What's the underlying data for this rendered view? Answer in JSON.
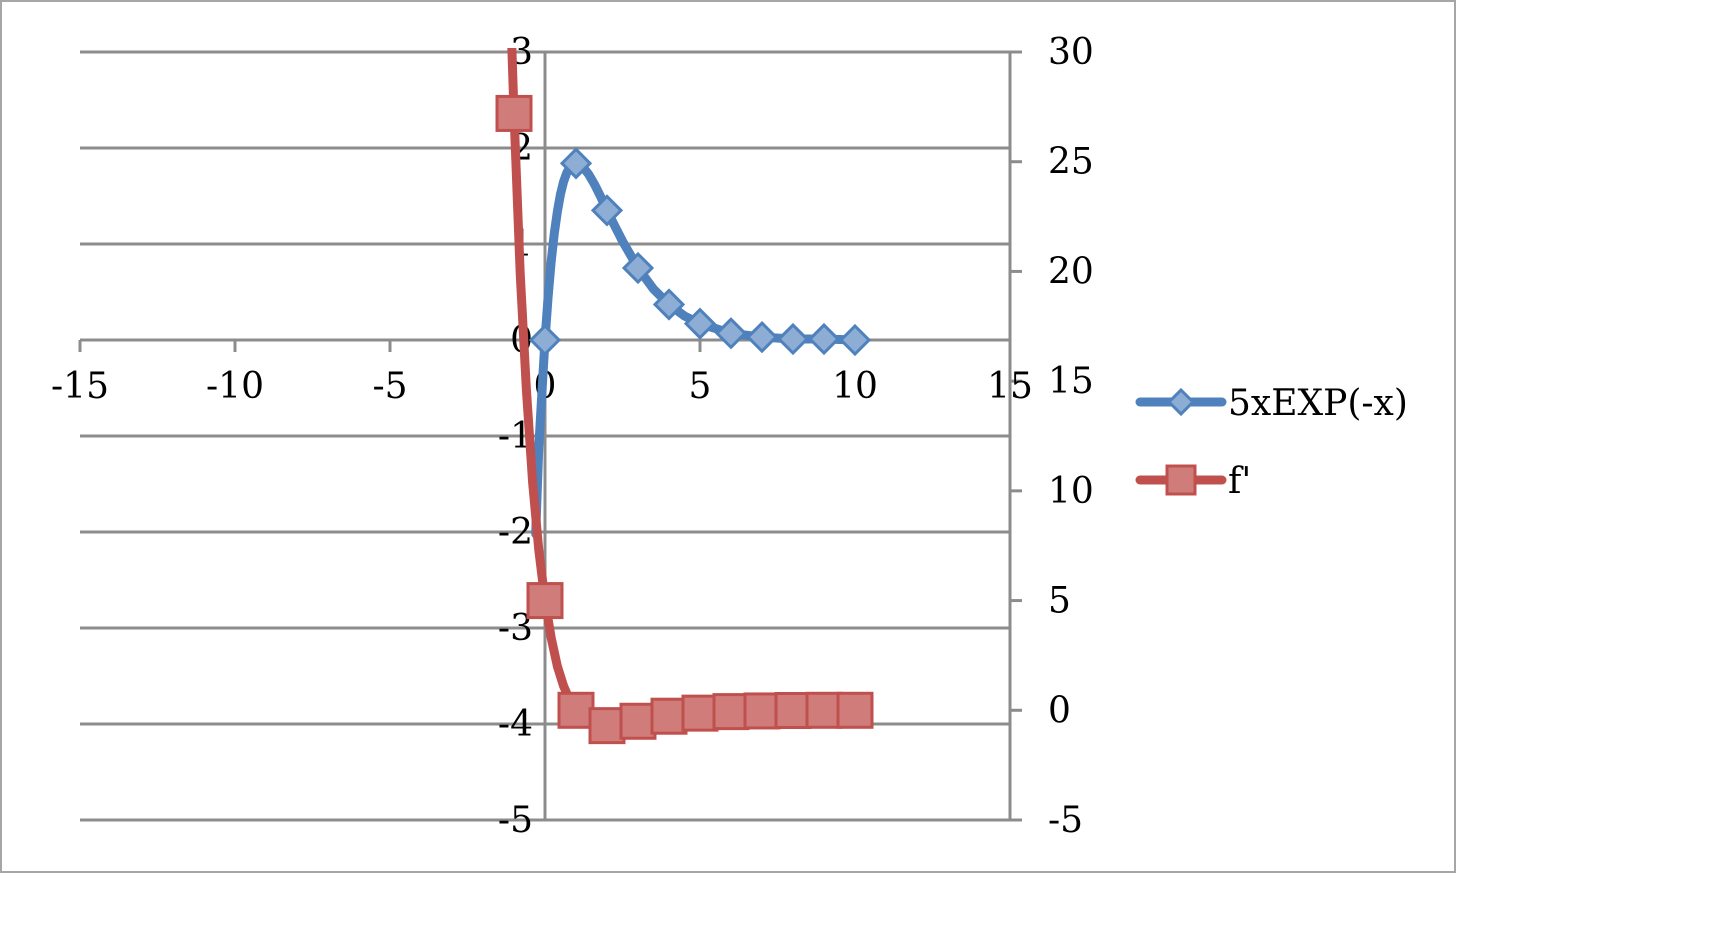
{
  "chart_data": {
    "type": "scatter",
    "title": "",
    "xlabel": "",
    "ylabel": "",
    "grid": true,
    "legend_position": "right",
    "x_axis": {
      "min": -15,
      "max": 15,
      "ticks": [
        -15,
        -10,
        -5,
        0,
        5,
        10,
        15
      ]
    },
    "y_axis_left": {
      "min": -5,
      "max": 3,
      "ticks": [
        3,
        2,
        1,
        0,
        -1,
        -2,
        -3,
        -4,
        -5
      ]
    },
    "y_axis_right": {
      "min": -5,
      "max": 30,
      "ticks": [
        30,
        25,
        20,
        15,
        10,
        5,
        0,
        -5
      ]
    },
    "series": [
      {
        "name": "5xEXP(-x)",
        "color": "#4f81bd",
        "marker": "diamond",
        "axis": "left",
        "x": [
          0,
          1,
          2,
          3,
          4,
          5,
          6,
          7,
          8,
          9,
          10
        ],
        "y": [
          0,
          1.84,
          1.35,
          0.75,
          0.37,
          0.17,
          0.07,
          0.03,
          0.01,
          0.01,
          0.0
        ],
        "curve_x": [
          -0.3,
          -0.2,
          -0.1,
          0,
          0.1,
          0.2,
          0.3,
          0.4,
          0.5,
          0.6,
          0.7,
          0.8,
          0.9,
          1.0,
          1.2,
          1.4,
          1.6,
          1.8,
          2.0,
          2.2,
          2.5,
          3.0,
          3.5,
          4.0,
          4.5,
          5.0,
          6.0,
          7.0,
          8.0,
          9.0,
          10.0
        ],
        "curve_y": [
          -2.02,
          -1.11,
          -0.55,
          0,
          0.45,
          0.82,
          1.11,
          1.34,
          1.52,
          1.65,
          1.74,
          1.8,
          1.83,
          1.84,
          1.81,
          1.73,
          1.62,
          1.49,
          1.35,
          1.22,
          1.03,
          0.75,
          0.53,
          0.37,
          0.25,
          0.17,
          0.07,
          0.03,
          0.01,
          0.01,
          0.0
        ]
      },
      {
        "name": "f'",
        "color": "#c0504d",
        "marker": "square",
        "axis": "right",
        "x": [
          -1,
          0,
          1,
          2,
          3,
          4,
          5,
          6,
          7,
          8,
          9,
          10
        ],
        "y": [
          27.2,
          5.0,
          0.0,
          -0.7,
          -0.5,
          -0.27,
          -0.13,
          -0.06,
          -0.03,
          -0.01,
          0,
          0
        ],
        "curve_x": [
          -1.1,
          -1.0,
          -0.8,
          -0.6,
          -0.4,
          -0.2,
          0,
          0.2,
          0.4,
          0.6,
          0.8,
          1.0,
          1.5,
          2.0,
          2.5,
          3.0,
          4.0,
          5.0,
          6.0,
          7.0,
          8.0,
          9.0,
          10.0
        ],
        "curve_y": [
          31.5,
          27.2,
          19.9,
          14.6,
          10.4,
          7.3,
          5.0,
          3.3,
          2.0,
          1.1,
          0.45,
          0.0,
          -0.56,
          -0.7,
          -0.62,
          -0.5,
          -0.27,
          -0.13,
          -0.06,
          -0.03,
          -0.01,
          0,
          0
        ]
      }
    ]
  }
}
